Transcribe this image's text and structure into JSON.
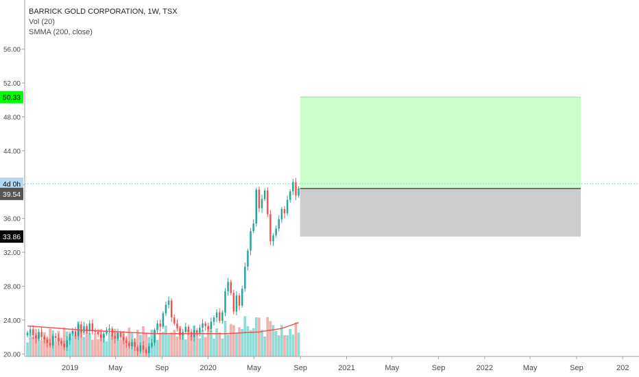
{
  "legend": {
    "symbol": "BARRICK GOLD CORPORATION, 1W, TSX",
    "volume": "Vol (20)",
    "smma": "SMMA (200, close)"
  },
  "badges": {
    "target": "50.33",
    "countdown": "4d 0h",
    "last": "39.54",
    "stop": "33.86"
  },
  "colors": {
    "up": "#26a69a",
    "down": "#ef5350",
    "vol_up": "#7fd3cf",
    "vol_down": "#f0a3a1",
    "smma": "#ef5350",
    "profit_zone": "#ccffcc",
    "loss_zone": "#cccccc",
    "target_badge": "#00ff00",
    "countdown_badge": "#b3d9f2",
    "last_badge": "#555555",
    "stop_badge": "#000000"
  },
  "chart_data": {
    "type": "candlestick",
    "ylim": [
      19.7,
      58.0
    ],
    "y_ticks": [
      "20.00",
      "24.00",
      "28.00",
      "32.00",
      "36.00",
      "40.00",
      "44.00",
      "48.00",
      "52.00",
      "56.00"
    ],
    "y_tick_values": [
      20,
      24,
      28,
      32,
      36,
      40,
      44,
      48,
      52,
      56
    ],
    "x_ticks": [
      "2019",
      "May",
      "Sep",
      "2020",
      "May",
      "Sep",
      "2021",
      "May",
      "Sep",
      "2022",
      "May",
      "Sep",
      "202"
    ],
    "x_tick_dates": [
      "2019-01-01",
      "2019-05-01",
      "2019-09-01",
      "2020-01-01",
      "2020-05-01",
      "2020-09-01",
      "2021-01-01",
      "2021-05-01",
      "2021-09-01",
      "2022-01-01",
      "2022-05-01",
      "2022-09-01",
      "2023-01-01"
    ],
    "x_start": "2018-09-03",
    "x_end": "2023-02-13",
    "closes": [
      22.5,
      22.9,
      22.2,
      21.8,
      22.6,
      22.0,
      21.7,
      21.3,
      21.0,
      22.1,
      21.9,
      21.5,
      21.2,
      20.8,
      21.6,
      22.4,
      22.7,
      22.1,
      23.5,
      22.5,
      23.3,
      22.7,
      23.6,
      22.8,
      22.6,
      22.3,
      21.9,
      22.4,
      22.8,
      23.0,
      22.1,
      21.8,
      22.5,
      22.0,
      21.6,
      21.3,
      20.9,
      21.4,
      20.8,
      20.3,
      21.0,
      20.5,
      20.1,
      20.9,
      21.3,
      22.8,
      23.6,
      23.2,
      24.8,
      25.8,
      26.3,
      24.3,
      23.6,
      23.0,
      22.2,
      22.6,
      23.2,
      22.6,
      22.0,
      22.8,
      22.4,
      23.1,
      23.6,
      23.3,
      22.9,
      23.8,
      24.3,
      24.9,
      23.9,
      24.9,
      27.4,
      28.5,
      27.2,
      25.0,
      26.9,
      25.7,
      27.7,
      30.3,
      32.2,
      34.5,
      35.4,
      39.4,
      37.2,
      38.3,
      39.3,
      36.5,
      33.3,
      34.0,
      34.8,
      35.9,
      37.1,
      36.6,
      38.2,
      39.2,
      40.3,
      38.7,
      39.54
    ],
    "volume_up": [
      23.4,
      22.8,
      23.1,
      22.9,
      22.0
    ],
    "last_close": 39.54,
    "smma": [
      [
        0,
        23.3
      ],
      [
        20,
        22.8
      ],
      [
        45,
        22.4
      ],
      [
        70,
        22.4
      ],
      [
        82,
        22.6
      ],
      [
        90,
        23.0
      ],
      [
        96,
        23.7
      ]
    ],
    "position": {
      "entry": 39.54,
      "target": 50.33,
      "stop": 33.86,
      "start": "2020-08-31",
      "end": "2022-09-12"
    }
  }
}
